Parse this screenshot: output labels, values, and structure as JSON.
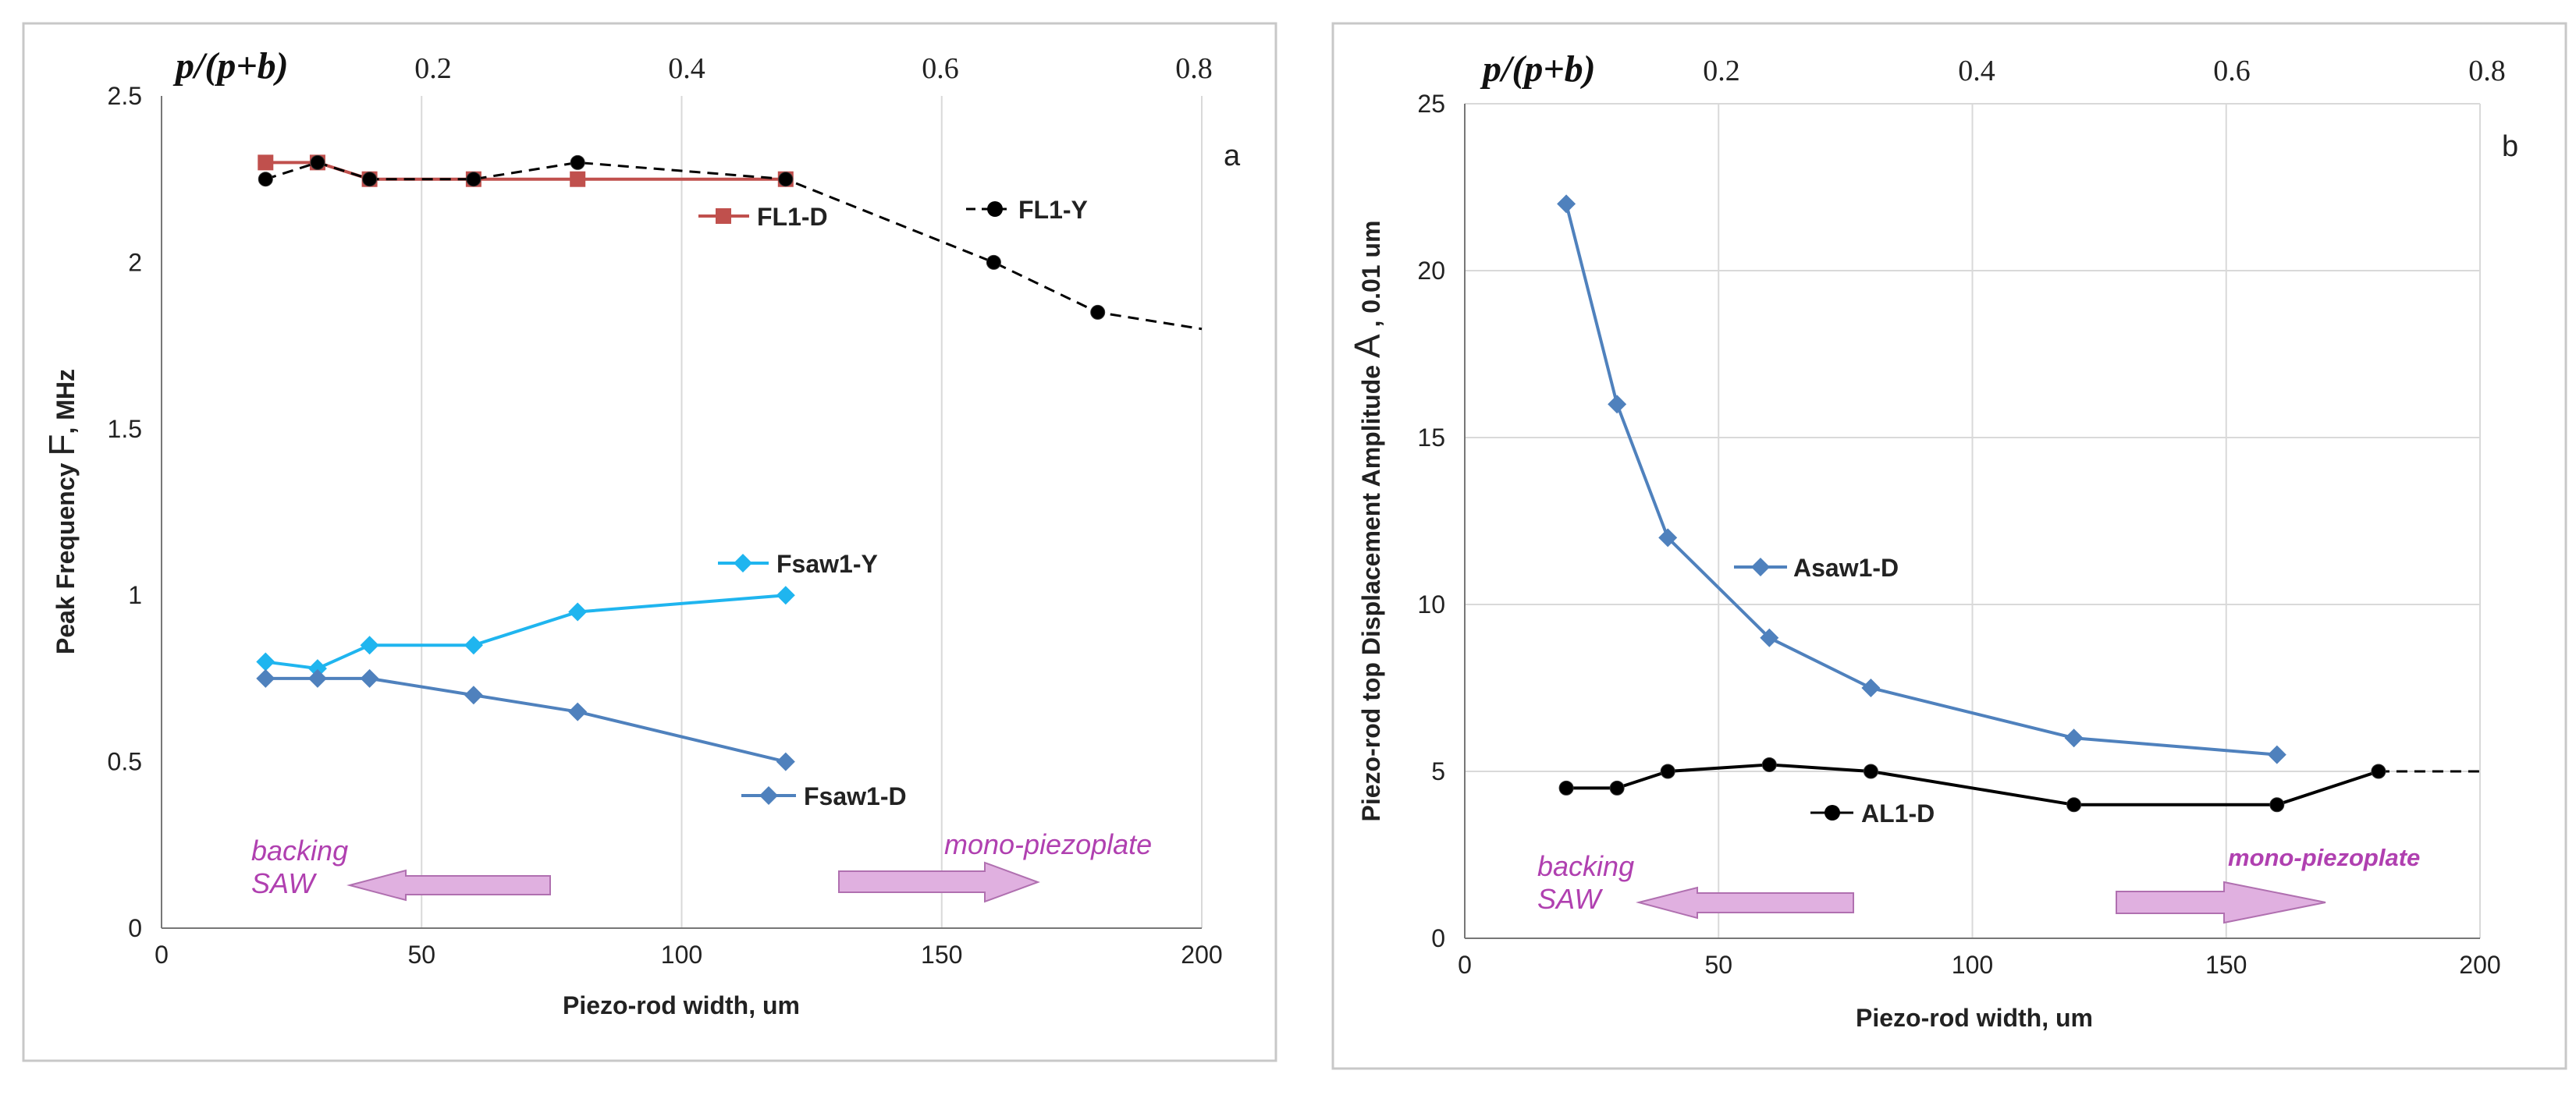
{
  "chart_data": [
    {
      "panel": "a",
      "type": "line",
      "top_axis": {
        "label": "p/(p+b)",
        "ticks": [
          "0.2",
          "0.4",
          "0.6",
          "0.8"
        ]
      },
      "xlabel": "Piezo-rod width,  um",
      "ylabel_prefix": "Peak Frequency ",
      "ylabel_symbol": "F",
      "ylabel_suffix": ", MHz",
      "xlim": [
        0,
        200
      ],
      "ylim": [
        0,
        2.5
      ],
      "xticks": [
        "0",
        "50",
        "100",
        "150",
        "200"
      ],
      "yticks": [
        "0",
        "0.5",
        "1",
        "1.5",
        "2",
        "2.5"
      ],
      "grid": "vertical",
      "series": [
        {
          "name": "FL1-D",
          "color": "#c0504d",
          "marker": "square",
          "dashed": false,
          "x": [
            20,
            30,
            40,
            60,
            80,
            120
          ],
          "y": [
            2.3,
            2.3,
            2.25,
            2.25,
            2.25,
            2.25
          ]
        },
        {
          "name": "FL1-Y",
          "color": "#000000",
          "marker": "circle",
          "dashed": true,
          "x": [
            20,
            30,
            40,
            60,
            80,
            120,
            160,
            180,
            200
          ],
          "y": [
            2.25,
            2.3,
            2.25,
            2.25,
            2.3,
            2.25,
            2.0,
            1.85,
            1.8
          ],
          "markers_on": [
            true,
            true,
            true,
            true,
            true,
            true,
            true,
            true,
            false
          ]
        },
        {
          "name": "Fsaw1-Y",
          "color": "#1fb5ef",
          "marker": "diamond",
          "dashed": false,
          "x": [
            20,
            30,
            40,
            60,
            80,
            120
          ],
          "y": [
            0.8,
            0.78,
            0.85,
            0.85,
            0.95,
            1.0
          ]
        },
        {
          "name": "Fsaw1-D",
          "color": "#4f81bd",
          "marker": "diamond",
          "dashed": false,
          "x": [
            20,
            30,
            40,
            60,
            80,
            120
          ],
          "y": [
            0.75,
            0.75,
            0.75,
            0.7,
            0.65,
            0.5
          ]
        }
      ],
      "legend": [
        "FL1-D",
        "FL1-Y",
        "Fsaw1-Y",
        "Fsaw1-D"
      ],
      "annotations": {
        "left": "backing\nSAW",
        "right": "mono-piezoplate"
      }
    },
    {
      "panel": "b",
      "type": "line",
      "top_axis": {
        "label": "p/(p+b)",
        "ticks": [
          "0.2",
          "0.4",
          "0.6",
          "0.8"
        ]
      },
      "xlabel": "Piezo-rod width, um",
      "ylabel_prefix": "Piezo-rod top Displacement Amplitude ",
      "ylabel_symbol": "A",
      "ylabel_suffix": " , 0.01 um",
      "xlim": [
        0,
        200
      ],
      "ylim": [
        0,
        25
      ],
      "xticks": [
        "0",
        "50",
        "100",
        "150",
        "200"
      ],
      "yticks": [
        "0",
        "5",
        "10",
        "15",
        "20",
        "25"
      ],
      "grid": "both",
      "series": [
        {
          "name": "Asaw1-D",
          "color": "#4f81bd",
          "marker": "diamond",
          "dashed": false,
          "x": [
            20,
            30,
            40,
            60,
            80,
            120,
            160
          ],
          "y": [
            22,
            16,
            12,
            9,
            7.5,
            6,
            5.5
          ]
        },
        {
          "name": "AL1-D",
          "color": "#000000",
          "marker": "circle",
          "dashed": false,
          "x": [
            20,
            30,
            40,
            60,
            80,
            120,
            160,
            180
          ],
          "y": [
            4.5,
            4.5,
            5.0,
            5.2,
            5.0,
            4.0,
            4.0,
            5.0
          ],
          "extension_x": [
            180,
            200
          ],
          "extension_y": [
            5.0,
            5.0
          ]
        }
      ],
      "legend": [
        "Asaw1-D",
        "AL1-D"
      ],
      "annotations": {
        "left": "backing\nSAW",
        "right": "mono-piezoplate"
      }
    }
  ]
}
